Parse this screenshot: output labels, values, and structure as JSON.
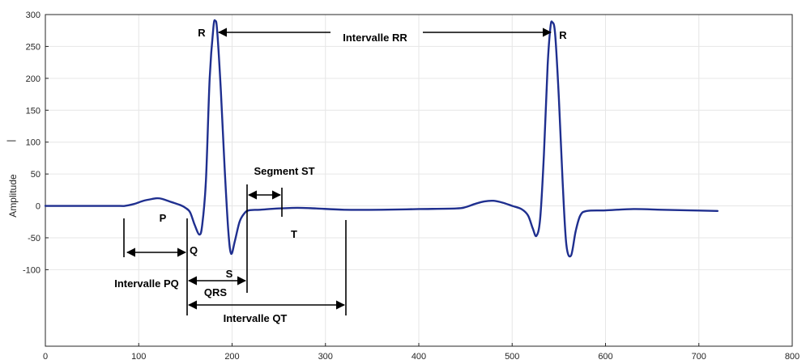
{
  "chart_data": {
    "type": "line",
    "title": "",
    "xlabel": "",
    "ylabel": "Amplitude",
    "ylabel_extra": "|",
    "xlim": [
      0,
      800
    ],
    "ylim": [
      -220,
      300
    ],
    "xticks": [
      0,
      100,
      200,
      300,
      400,
      500,
      600,
      700,
      800
    ],
    "yticks": [
      -100,
      -50,
      0,
      50,
      100,
      150,
      200,
      250,
      300
    ],
    "grid": true,
    "colors": {
      "signal": "#1f2f8f",
      "annotation": "#000000",
      "grid": "#e6e6e6"
    },
    "series": [
      {
        "x": [
          0,
          20,
          40,
          60,
          80,
          85,
          95,
          105,
          115,
          120,
          125,
          135,
          145,
          150,
          155,
          160,
          165,
          168,
          172,
          176,
          180,
          182,
          184,
          188,
          192,
          196,
          199,
          203,
          208,
          213,
          218,
          230,
          250,
          270,
          290,
          320,
          360,
          400,
          440,
          450,
          460,
          470,
          480,
          490,
          500,
          510,
          517,
          522,
          526,
          530,
          534,
          538,
          541,
          543,
          546,
          550,
          554,
          558,
          563,
          568,
          573,
          580,
          600,
          630,
          660,
          690,
          720
        ],
        "y": [
          0,
          0,
          0,
          0,
          0,
          0,
          3,
          8,
          11,
          12,
          11,
          6,
          1,
          -3,
          -10,
          -30,
          -45,
          -30,
          40,
          200,
          280,
          290,
          275,
          180,
          60,
          -40,
          -75,
          -55,
          -25,
          -12,
          -7,
          -6,
          -4,
          -3,
          -4,
          -6,
          -6,
          -5,
          -4,
          -2,
          3,
          7,
          8,
          5,
          0,
          -5,
          -15,
          -35,
          -47,
          -20,
          80,
          220,
          280,
          288,
          270,
          170,
          40,
          -60,
          -78,
          -40,
          -15,
          -8,
          -7,
          -5,
          -6,
          -7,
          -8
        ]
      }
    ],
    "annotations": {
      "r_label": "R",
      "p_label": "P",
      "q_label": "Q",
      "s_label": "S",
      "t_label": "T",
      "rr_label": "Intervalle RR",
      "st_label": "Segment ST",
      "pq_label": "Intervalle PQ",
      "qrs_label": "QRS",
      "qt_label": "Intervalle QT"
    }
  }
}
